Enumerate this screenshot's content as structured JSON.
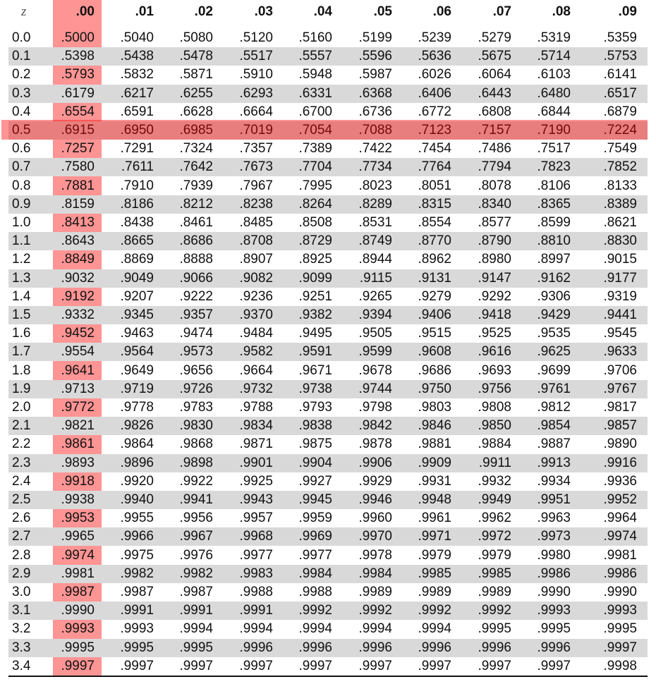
{
  "table": {
    "z_header": "z",
    "column_headers": [
      ".00",
      ".01",
      ".02",
      ".03",
      ".04",
      ".05",
      ".06",
      ".07",
      ".08",
      ".09"
    ],
    "highlighted_column": ".00",
    "highlighted_row": "0.5",
    "highlight_color": "#ff0000",
    "shade_color": "#d9d9d9",
    "rows": [
      {
        "z": "0.0",
        "values": [
          ".5000",
          ".5040",
          ".5080",
          ".5120",
          ".5160",
          ".5199",
          ".5239",
          ".5279",
          ".5319",
          ".5359"
        ]
      },
      {
        "z": "0.1",
        "values": [
          ".5398",
          ".5438",
          ".5478",
          ".5517",
          ".5557",
          ".5596",
          ".5636",
          ".5675",
          ".5714",
          ".5753"
        ]
      },
      {
        "z": "0.2",
        "values": [
          ".5793",
          ".5832",
          ".5871",
          ".5910",
          ".5948",
          ".5987",
          ".6026",
          ".6064",
          ".6103",
          ".6141"
        ]
      },
      {
        "z": "0.3",
        "values": [
          ".6179",
          ".6217",
          ".6255",
          ".6293",
          ".6331",
          ".6368",
          ".6406",
          ".6443",
          ".6480",
          ".6517"
        ]
      },
      {
        "z": "0.4",
        "values": [
          ".6554",
          ".6591",
          ".6628",
          ".6664",
          ".6700",
          ".6736",
          ".6772",
          ".6808",
          ".6844",
          ".6879"
        ]
      },
      {
        "z": "0.5",
        "values": [
          ".6915",
          ".6950",
          ".6985",
          ".7019",
          ".7054",
          ".7088",
          ".7123",
          ".7157",
          ".7190",
          ".7224"
        ]
      },
      {
        "z": "0.6",
        "values": [
          ".7257",
          ".7291",
          ".7324",
          ".7357",
          ".7389",
          ".7422",
          ".7454",
          ".7486",
          ".7517",
          ".7549"
        ]
      },
      {
        "z": "0.7",
        "values": [
          ".7580",
          ".7611",
          ".7642",
          ".7673",
          ".7704",
          ".7734",
          ".7764",
          ".7794",
          ".7823",
          ".7852"
        ]
      },
      {
        "z": "0.8",
        "values": [
          ".7881",
          ".7910",
          ".7939",
          ".7967",
          ".7995",
          ".8023",
          ".8051",
          ".8078",
          ".8106",
          ".8133"
        ]
      },
      {
        "z": "0.9",
        "values": [
          ".8159",
          ".8186",
          ".8212",
          ".8238",
          ".8264",
          ".8289",
          ".8315",
          ".8340",
          ".8365",
          ".8389"
        ]
      },
      {
        "z": "1.0",
        "values": [
          ".8413",
          ".8438",
          ".8461",
          ".8485",
          ".8508",
          ".8531",
          ".8554",
          ".8577",
          ".8599",
          ".8621"
        ]
      },
      {
        "z": "1.1",
        "values": [
          ".8643",
          ".8665",
          ".8686",
          ".8708",
          ".8729",
          ".8749",
          ".8770",
          ".8790",
          ".8810",
          ".8830"
        ]
      },
      {
        "z": "1.2",
        "values": [
          ".8849",
          ".8869",
          ".8888",
          ".8907",
          ".8925",
          ".8944",
          ".8962",
          ".8980",
          ".8997",
          ".9015"
        ]
      },
      {
        "z": "1.3",
        "values": [
          ".9032",
          ".9049",
          ".9066",
          ".9082",
          ".9099",
          ".9115",
          ".9131",
          ".9147",
          ".9162",
          ".9177"
        ]
      },
      {
        "z": "1.4",
        "values": [
          ".9192",
          ".9207",
          ".9222",
          ".9236",
          ".9251",
          ".9265",
          ".9279",
          ".9292",
          ".9306",
          ".9319"
        ]
      },
      {
        "z": "1.5",
        "values": [
          ".9332",
          ".9345",
          ".9357",
          ".9370",
          ".9382",
          ".9394",
          ".9406",
          ".9418",
          ".9429",
          ".9441"
        ]
      },
      {
        "z": "1.6",
        "values": [
          ".9452",
          ".9463",
          ".9474",
          ".9484",
          ".9495",
          ".9505",
          ".9515",
          ".9525",
          ".9535",
          ".9545"
        ]
      },
      {
        "z": "1.7",
        "values": [
          ".9554",
          ".9564",
          ".9573",
          ".9582",
          ".9591",
          ".9599",
          ".9608",
          ".9616",
          ".9625",
          ".9633"
        ]
      },
      {
        "z": "1.8",
        "values": [
          ".9641",
          ".9649",
          ".9656",
          ".9664",
          ".9671",
          ".9678",
          ".9686",
          ".9693",
          ".9699",
          ".9706"
        ]
      },
      {
        "z": "1.9",
        "values": [
          ".9713",
          ".9719",
          ".9726",
          ".9732",
          ".9738",
          ".9744",
          ".9750",
          ".9756",
          ".9761",
          ".9767"
        ]
      },
      {
        "z": "2.0",
        "values": [
          ".9772",
          ".9778",
          ".9783",
          ".9788",
          ".9793",
          ".9798",
          ".9803",
          ".9808",
          ".9812",
          ".9817"
        ]
      },
      {
        "z": "2.1",
        "values": [
          ".9821",
          ".9826",
          ".9830",
          ".9834",
          ".9838",
          ".9842",
          ".9846",
          ".9850",
          ".9854",
          ".9857"
        ]
      },
      {
        "z": "2.2",
        "values": [
          ".9861",
          ".9864",
          ".9868",
          ".9871",
          ".9875",
          ".9878",
          ".9881",
          ".9884",
          ".9887",
          ".9890"
        ]
      },
      {
        "z": "2.3",
        "values": [
          ".9893",
          ".9896",
          ".9898",
          ".9901",
          ".9904",
          ".9906",
          ".9909",
          ".9911",
          ".9913",
          ".9916"
        ]
      },
      {
        "z": "2.4",
        "values": [
          ".9918",
          ".9920",
          ".9922",
          ".9925",
          ".9927",
          ".9929",
          ".9931",
          ".9932",
          ".9934",
          ".9936"
        ]
      },
      {
        "z": "2.5",
        "values": [
          ".9938",
          ".9940",
          ".9941",
          ".9943",
          ".9945",
          ".9946",
          ".9948",
          ".9949",
          ".9951",
          ".9952"
        ]
      },
      {
        "z": "2.6",
        "values": [
          ".9953",
          ".9955",
          ".9956",
          ".9957",
          ".9959",
          ".9960",
          ".9961",
          ".9962",
          ".9963",
          ".9964"
        ]
      },
      {
        "z": "2.7",
        "values": [
          ".9965",
          ".9966",
          ".9967",
          ".9968",
          ".9969",
          ".9970",
          ".9971",
          ".9972",
          ".9973",
          ".9974"
        ]
      },
      {
        "z": "2.8",
        "values": [
          ".9974",
          ".9975",
          ".9976",
          ".9977",
          ".9977",
          ".9978",
          ".9979",
          ".9979",
          ".9980",
          ".9981"
        ]
      },
      {
        "z": "2.9",
        "values": [
          ".9981",
          ".9982",
          ".9982",
          ".9983",
          ".9984",
          ".9984",
          ".9985",
          ".9985",
          ".9986",
          ".9986"
        ]
      },
      {
        "z": "3.0",
        "values": [
          ".9987",
          ".9987",
          ".9987",
          ".9988",
          ".9988",
          ".9989",
          ".9989",
          ".9989",
          ".9990",
          ".9990"
        ]
      },
      {
        "z": "3.1",
        "values": [
          ".9990",
          ".9991",
          ".9991",
          ".9991",
          ".9992",
          ".9992",
          ".9992",
          ".9992",
          ".9993",
          ".9993"
        ]
      },
      {
        "z": "3.2",
        "values": [
          ".9993",
          ".9993",
          ".9994",
          ".9994",
          ".9994",
          ".9994",
          ".9994",
          ".9995",
          ".9995",
          ".9995"
        ]
      },
      {
        "z": "3.3",
        "values": [
          ".9995",
          ".9995",
          ".9995",
          ".9996",
          ".9996",
          ".9996",
          ".9996",
          ".9996",
          ".9996",
          ".9997"
        ]
      },
      {
        "z": "3.4",
        "values": [
          ".9997",
          ".9997",
          ".9997",
          ".9997",
          ".9997",
          ".9997",
          ".9997",
          ".9997",
          ".9997",
          ".9998"
        ]
      }
    ]
  }
}
